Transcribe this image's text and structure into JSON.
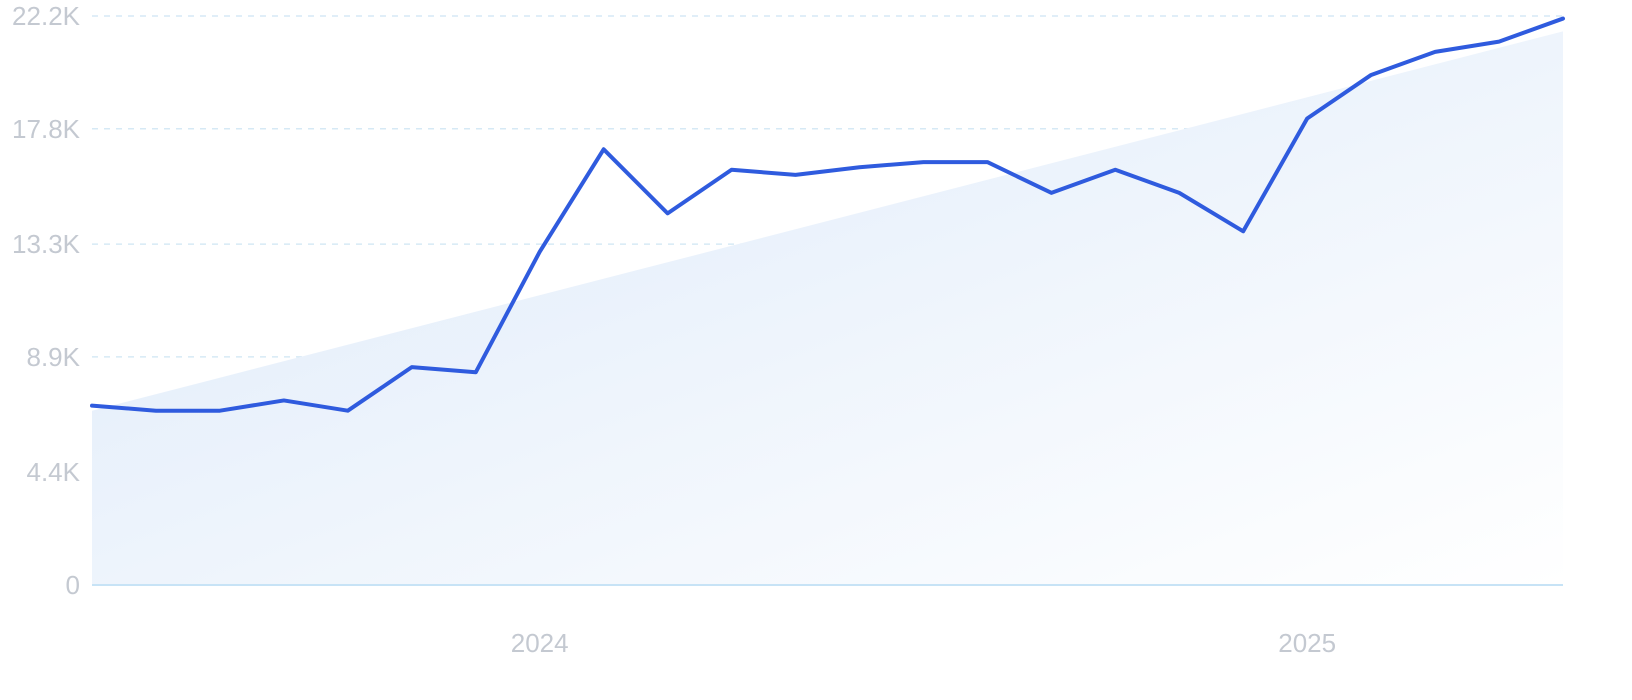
{
  "chart_data": {
    "type": "line",
    "title": "",
    "xlabel": "",
    "ylabel": "",
    "y_ticks": [
      "0",
      "4.4K",
      "8.9K",
      "13.3K",
      "17.8K",
      "22.2K"
    ],
    "y_tick_values": [
      0,
      4400,
      8900,
      13300,
      17800,
      22200
    ],
    "ylim": [
      0,
      22200
    ],
    "x_ticks": [
      "2024",
      "2025"
    ],
    "x_tick_positions": [
      7,
      19
    ],
    "xlim": [
      0,
      23
    ],
    "grid": true,
    "series": [
      {
        "values": [
          7000,
          6800,
          6800,
          7200,
          6800,
          8500,
          8300,
          13000,
          17000,
          14500,
          16200,
          16000,
          16300,
          16500,
          16500,
          15300,
          16200,
          15300,
          13800,
          18200,
          19900,
          20800,
          21200,
          22100
        ],
        "color": "#2f5bde"
      }
    ],
    "trend": {
      "values_start_end": [
        6800,
        21600
      ],
      "fill_colors": [
        "#dce9f9",
        "#ffffff"
      ]
    },
    "colors": {
      "line": "#2f5bde",
      "grid": "#d6e9f5",
      "axis": "#c7e3f6",
      "tick_text": "#c4c9d1"
    }
  }
}
